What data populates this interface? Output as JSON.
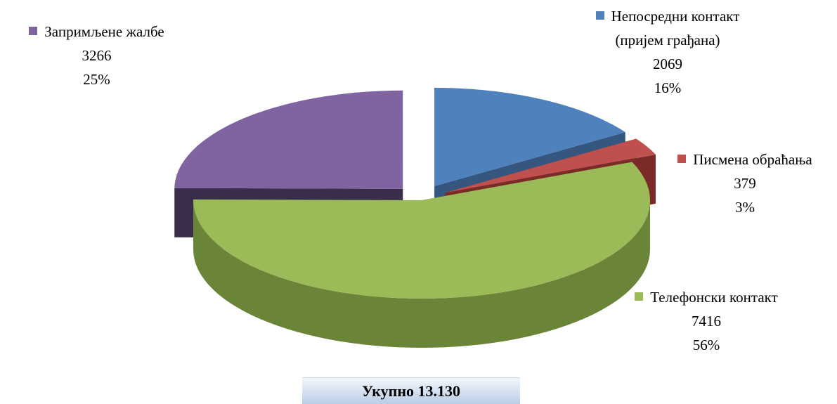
{
  "chart_data": {
    "type": "pie",
    "categories": [
      "Непосредни контакт (пријем грађана)",
      "Писмена обраћања",
      "Телефонски контакт",
      "Запримљене жалбе"
    ],
    "values": [
      2069,
      379,
      7416,
      3266
    ],
    "percent_labels": [
      "16%",
      "3%",
      "56%",
      "25%"
    ],
    "colors": [
      "#4f81bd",
      "#c0504d",
      "#9bbb59",
      "#8064a2"
    ],
    "side_colors": [
      "#35577f",
      "#7a2b28",
      "#6b8538",
      "#3a2d4a"
    ],
    "total": "Укупно 13.130"
  }
}
